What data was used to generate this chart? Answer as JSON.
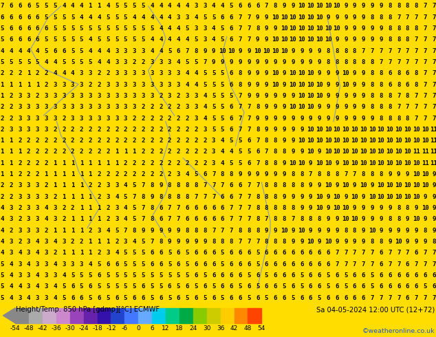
{
  "title_left": "Height/Temp. 850 hPa [gdmp][°C] ECMWF",
  "title_right": "Sa 04-05-2024 12:00 UTC (12+72)",
  "credit": "©weatheronline.co.uk",
  "colorbar_ticks": [
    -54,
    -48,
    -42,
    -36,
    -30,
    -24,
    -18,
    -12,
    -6,
    0,
    6,
    12,
    18,
    24,
    30,
    36,
    42,
    48,
    54
  ],
  "bg_color": "#ffdd00",
  "contour_color": "#8899bb",
  "number_color": "#000000",
  "number_fontsize": 6.5,
  "fig_width": 6.34,
  "fig_height": 4.9,
  "dpi": 100,
  "colorbar_label_fontsize": 6.5,
  "grid_rows": 27,
  "grid_cols": 50,
  "field": [
    [
      7,
      6,
      6,
      6,
      5,
      5,
      5,
      4,
      4,
      4,
      1,
      1,
      4,
      5,
      5,
      5,
      5,
      4,
      4,
      4,
      4,
      4,
      3,
      3,
      4,
      4,
      5,
      6,
      6,
      6,
      7,
      8,
      9,
      9,
      10,
      10,
      10,
      10,
      10,
      9,
      9,
      9,
      9,
      9,
      8,
      8,
      8,
      8,
      7,
      7
    ],
    [
      6,
      6,
      6,
      6,
      6,
      5,
      5,
      5,
      5,
      4,
      4,
      4,
      5,
      5,
      5,
      4,
      4,
      4,
      4,
      4,
      3,
      3,
      4,
      5,
      5,
      6,
      6,
      7,
      7,
      9,
      9,
      10,
      10,
      10,
      10,
      10,
      10,
      9,
      9,
      9,
      9,
      9,
      8,
      8,
      8,
      7,
      7,
      7,
      7,
      7
    ],
    [
      5,
      6,
      6,
      6,
      6,
      6,
      5,
      5,
      5,
      5,
      5,
      5,
      5,
      5,
      5,
      5,
      5,
      5,
      4,
      4,
      4,
      5,
      3,
      3,
      4,
      5,
      6,
      7,
      7,
      8,
      9,
      9,
      10,
      10,
      10,
      10,
      10,
      10,
      10,
      9,
      9,
      9,
      9,
      9,
      8,
      8,
      8,
      8,
      7,
      7
    ],
    [
      5,
      6,
      6,
      6,
      6,
      5,
      5,
      5,
      5,
      5,
      4,
      5,
      5,
      5,
      5,
      5,
      5,
      4,
      4,
      4,
      4,
      4,
      5,
      3,
      4,
      5,
      6,
      7,
      7,
      9,
      9,
      10,
      10,
      10,
      10,
      10,
      10,
      10,
      9,
      9,
      9,
      9,
      9,
      9,
      8,
      8,
      8,
      7,
      7,
      7
    ],
    [
      4,
      4,
      4,
      4,
      4,
      5,
      6,
      6,
      5,
      5,
      4,
      4,
      4,
      3,
      3,
      3,
      3,
      4,
      4,
      5,
      6,
      7,
      8,
      9,
      9,
      10,
      10,
      9,
      9,
      10,
      10,
      10,
      10,
      9,
      9,
      9,
      9,
      8,
      8,
      8,
      8,
      7,
      7,
      7,
      7,
      7,
      7,
      7,
      7,
      7
    ],
    [
      5,
      5,
      5,
      5,
      5,
      4,
      4,
      5,
      5,
      5,
      5,
      4,
      4,
      3,
      3,
      2,
      2,
      3,
      3,
      3,
      4,
      5,
      5,
      7,
      9,
      9,
      9,
      9,
      9,
      9,
      9,
      9,
      9,
      9,
      9,
      9,
      9,
      8,
      8,
      8,
      8,
      8,
      8,
      7,
      7,
      7,
      7,
      7,
      7,
      7
    ],
    [
      2,
      2,
      2,
      1,
      2,
      2,
      4,
      4,
      4,
      3,
      3,
      2,
      2,
      3,
      3,
      3,
      3,
      3,
      3,
      3,
      3,
      4,
      4,
      5,
      5,
      5,
      6,
      8,
      9,
      9,
      9,
      10,
      9,
      10,
      10,
      10,
      9,
      9,
      9,
      10,
      9,
      9,
      8,
      8,
      6,
      8,
      6,
      8,
      7,
      7
    ],
    [
      1,
      1,
      1,
      1,
      1,
      2,
      3,
      3,
      3,
      3,
      2,
      2,
      3,
      3,
      3,
      3,
      3,
      3,
      3,
      3,
      3,
      4,
      4,
      5,
      5,
      5,
      6,
      8,
      9,
      9,
      9,
      10,
      9,
      10,
      10,
      10,
      10,
      9,
      9,
      10,
      9,
      9,
      8,
      8,
      6,
      8,
      6,
      8,
      7,
      7
    ],
    [
      1,
      2,
      3,
      3,
      2,
      3,
      3,
      3,
      3,
      3,
      3,
      3,
      3,
      3,
      3,
      3,
      3,
      3,
      2,
      3,
      2,
      3,
      3,
      4,
      5,
      5,
      5,
      7,
      9,
      9,
      9,
      9,
      9,
      9,
      10,
      10,
      10,
      9,
      9,
      9,
      9,
      9,
      8,
      8,
      8,
      7,
      8,
      7,
      7,
      7
    ],
    [
      2,
      2,
      3,
      3,
      3,
      3,
      3,
      3,
      3,
      3,
      3,
      3,
      3,
      3,
      3,
      3,
      2,
      2,
      2,
      2,
      2,
      3,
      3,
      4,
      5,
      5,
      6,
      7,
      7,
      8,
      9,
      9,
      9,
      10,
      10,
      10,
      9,
      9,
      9,
      9,
      9,
      9,
      8,
      8,
      8,
      7,
      7,
      7,
      7,
      7
    ],
    [
      2,
      2,
      3,
      3,
      3,
      3,
      3,
      2,
      3,
      3,
      3,
      3,
      3,
      3,
      3,
      2,
      2,
      2,
      2,
      2,
      2,
      2,
      3,
      4,
      5,
      5,
      6,
      7,
      7,
      9,
      9,
      9,
      9,
      9,
      9,
      9,
      9,
      9,
      9,
      9,
      9,
      9,
      9,
      8,
      8,
      8,
      8,
      7,
      7,
      7
    ],
    [
      2,
      3,
      3,
      3,
      3,
      3,
      2,
      2,
      2,
      2,
      2,
      2,
      2,
      2,
      2,
      2,
      2,
      2,
      2,
      2,
      2,
      2,
      2,
      3,
      5,
      5,
      6,
      7,
      7,
      8,
      9,
      9,
      9,
      9,
      9,
      10,
      10,
      10,
      10,
      10,
      10,
      10,
      10,
      10,
      10,
      10,
      10,
      10,
      10,
      11
    ],
    [
      1,
      1,
      2,
      2,
      2,
      2,
      2,
      2,
      2,
      2,
      2,
      2,
      2,
      2,
      2,
      2,
      2,
      2,
      2,
      2,
      2,
      2,
      2,
      2,
      3,
      4,
      5,
      5,
      6,
      7,
      8,
      8,
      9,
      9,
      10,
      10,
      10,
      10,
      10,
      10,
      10,
      10,
      10,
      10,
      10,
      10,
      10,
      10,
      10,
      11
    ],
    [
      1,
      1,
      1,
      2,
      2,
      2,
      2,
      2,
      2,
      2,
      2,
      2,
      2,
      1,
      1,
      1,
      2,
      2,
      2,
      2,
      2,
      2,
      2,
      2,
      3,
      4,
      4,
      5,
      5,
      6,
      7,
      8,
      8,
      9,
      9,
      10,
      9,
      10,
      10,
      10,
      10,
      10,
      10,
      10,
      10,
      10,
      10,
      11,
      11,
      11
    ],
    [
      1,
      1,
      2,
      2,
      2,
      2,
      1,
      1,
      1,
      1,
      1,
      1,
      1,
      1,
      2,
      2,
      2,
      2,
      2,
      2,
      2,
      2,
      2,
      2,
      3,
      4,
      5,
      5,
      6,
      7,
      8,
      8,
      9,
      10,
      10,
      9,
      10,
      10,
      9,
      10,
      10,
      10,
      10,
      10,
      10,
      10,
      10,
      10,
      11,
      11
    ],
    [
      1,
      1,
      2,
      2,
      2,
      1,
      1,
      1,
      1,
      1,
      1,
      2,
      2,
      2,
      2,
      2,
      2,
      2,
      2,
      2,
      3,
      4,
      5,
      6,
      7,
      8,
      8,
      9,
      9,
      9,
      9,
      9,
      9,
      8,
      8,
      7,
      8,
      8,
      8,
      7,
      7,
      8,
      8,
      8,
      9,
      9,
      9,
      10,
      10,
      9
    ],
    [
      2,
      2,
      3,
      3,
      3,
      2,
      1,
      1,
      1,
      1,
      2,
      2,
      3,
      3,
      4,
      5,
      7,
      8,
      9,
      8,
      8,
      8,
      8,
      7,
      7,
      7,
      6,
      6,
      7,
      7,
      8,
      8,
      8,
      8,
      8,
      9,
      9,
      10,
      9,
      10,
      9,
      10,
      9,
      10,
      10,
      10,
      10,
      10,
      10,
      9
    ],
    [
      2,
      2,
      3,
      3,
      3,
      3,
      2,
      1,
      1,
      1,
      1,
      2,
      3,
      4,
      5,
      7,
      8,
      9,
      8,
      8,
      8,
      8,
      7,
      7,
      7,
      6,
      6,
      7,
      7,
      8,
      8,
      8,
      9,
      9,
      9,
      9,
      10,
      9,
      10,
      9,
      10,
      9,
      10,
      10,
      10,
      10,
      10,
      10,
      9,
      9
    ],
    [
      4,
      3,
      2,
      3,
      3,
      4,
      3,
      2,
      2,
      1,
      1,
      1,
      2,
      3,
      4,
      5,
      7,
      8,
      6,
      7,
      7,
      6,
      6,
      6,
      6,
      6,
      7,
      7,
      7,
      8,
      8,
      8,
      8,
      8,
      9,
      9,
      10,
      9,
      10,
      10,
      9,
      9,
      9,
      9,
      9,
      8,
      8,
      9,
      10,
      9
    ],
    [
      4,
      3,
      2,
      3,
      3,
      4,
      3,
      2,
      1,
      1,
      1,
      1,
      2,
      3,
      4,
      5,
      7,
      8,
      6,
      7,
      7,
      6,
      6,
      6,
      6,
      6,
      7,
      7,
      7,
      8,
      7,
      8,
      8,
      7,
      8,
      8,
      8,
      9,
      9,
      10,
      10,
      9,
      9,
      9,
      8,
      8,
      9,
      10,
      9,
      9
    ],
    [
      4,
      2,
      3,
      3,
      3,
      2,
      1,
      1,
      1,
      1,
      2,
      3,
      4,
      5,
      7,
      8,
      9,
      9,
      9,
      9,
      9,
      8,
      8,
      8,
      7,
      7,
      7,
      8,
      8,
      8,
      9,
      9,
      10,
      9,
      10,
      9,
      9,
      9,
      9,
      8,
      8,
      9,
      10,
      9,
      9,
      9,
      9,
      9,
      8,
      9
    ],
    [
      4,
      3,
      2,
      3,
      4,
      3,
      4,
      3,
      2,
      2,
      1,
      1,
      1,
      2,
      3,
      4,
      5,
      7,
      8,
      9,
      9,
      9,
      9,
      9,
      8,
      8,
      8,
      7,
      7,
      7,
      8,
      8,
      8,
      9,
      9,
      10,
      9,
      10,
      9,
      9,
      9,
      9,
      8,
      8,
      9,
      10,
      9,
      9,
      9,
      8
    ],
    [
      4,
      3,
      4,
      3,
      4,
      3,
      2,
      1,
      1,
      1,
      1,
      2,
      3,
      4,
      5,
      5,
      5,
      6,
      6,
      5,
      6,
      5,
      6,
      6,
      6,
      5,
      6,
      6,
      6,
      5,
      6,
      6,
      6,
      6,
      6,
      6,
      6,
      6,
      7,
      7,
      7,
      7,
      7,
      6,
      7,
      7,
      7,
      6,
      7,
      7
    ],
    [
      5,
      4,
      3,
      4,
      3,
      3,
      4,
      3,
      3,
      3,
      4,
      5,
      6,
      6,
      5,
      5,
      5,
      6,
      6,
      5,
      6,
      5,
      6,
      6,
      6,
      5,
      6,
      6,
      6,
      5,
      6,
      6,
      6,
      6,
      6,
      6,
      6,
      6,
      7,
      7,
      7,
      7,
      7,
      6,
      7,
      7,
      6,
      7,
      7,
      7
    ],
    [
      5,
      4,
      3,
      3,
      4,
      3,
      3,
      4,
      5,
      5,
      5,
      6,
      5,
      5,
      5,
      5,
      5,
      5,
      5,
      5,
      5,
      5,
      6,
      5,
      6,
      6,
      6,
      6,
      5,
      6,
      5,
      6,
      6,
      6,
      5,
      6,
      6,
      5,
      6,
      5,
      6,
      6,
      5,
      6,
      6,
      6,
      6,
      6,
      6,
      6
    ],
    [
      5,
      4,
      4,
      3,
      4,
      3,
      4,
      5,
      6,
      5,
      6,
      5,
      5,
      5,
      5,
      5,
      6,
      5,
      5,
      6,
      5,
      6,
      5,
      6,
      5,
      6,
      6,
      5,
      6,
      5,
      6,
      6,
      5,
      6,
      5,
      6,
      6,
      5,
      6,
      5,
      6,
      6,
      5,
      6,
      6,
      6,
      6,
      6,
      5,
      6
    ],
    [
      5,
      4,
      3,
      4,
      3,
      3,
      4,
      5,
      6,
      6,
      5,
      6,
      5,
      6,
      5,
      6,
      6,
      5,
      6,
      5,
      6,
      5,
      6,
      5,
      6,
      5,
      6,
      6,
      5,
      6,
      5,
      6,
      6,
      5,
      6,
      6,
      5,
      6,
      6,
      6,
      6,
      6,
      7,
      7,
      7,
      7,
      6,
      7,
      7,
      7
    ]
  ],
  "cbar_colors": [
    "#888888",
    "#aaaaaa",
    "#ccaacc",
    "#cc88cc",
    "#9944bb",
    "#6622aa",
    "#3311aa",
    "#2244cc",
    "#4477ff",
    "#66aaff",
    "#00ccee",
    "#00cc88",
    "#00aa44",
    "#88cc00",
    "#cccc00",
    "#ffcc00",
    "#ff8800",
    "#ff4400",
    "#cc0000",
    "#880000"
  ]
}
